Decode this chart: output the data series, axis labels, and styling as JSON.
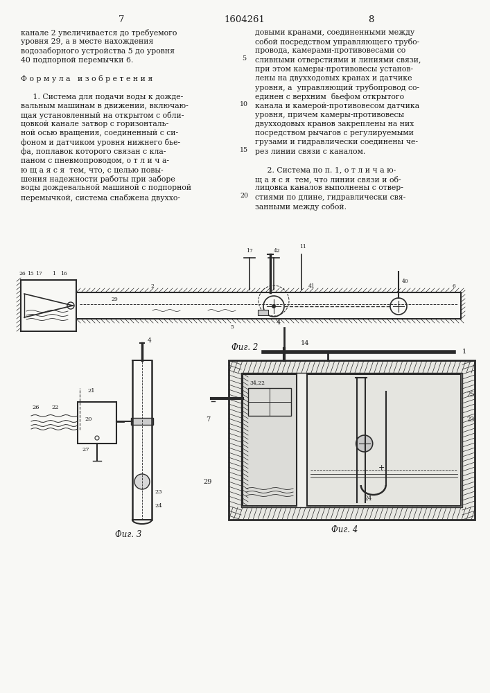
{
  "page_width": 7.07,
  "page_height": 10.0,
  "bg_color": "#f8f8f5",
  "header": {
    "left_num": "7",
    "center_num": "1604261",
    "right_num": "8"
  },
  "left_col_text": [
    "канале 2 увеличивается до требуемого",
    "уровня 29, а в месте нахождения",
    "водозаборного устройства 5 до уровня",
    "40 подпорной перемычки 6.",
    "",
    "Ф о р м у л а   и з о б р е т е н и я",
    "",
    "     1. Система для подачи воды к дожде-",
    "вальным машинам в движении, включаю-",
    "щая установленный на открытом с обли-",
    "цовкой канале затвор с горизонталь-",
    "ной осью вращения, соединенный с си-",
    "фоном и датчиком уровня нижнего бье-",
    "фа, поплавок которого связан с кла-",
    "паном с пневмопроводом, о т л и ч а-",
    "ю щ а я с я  тем, что, с целью повы-",
    "шения надежности работы при заборе",
    "воды дождевальной машиной с подпорной",
    "перемычкой, система снабжена двуххо-"
  ],
  "right_col_text": [
    "довыми кранами, соединенными между",
    "собой посредством управляющего трубо-",
    "провода, камерами-противовесами со",
    "сливными отверстиями и линиями связи,",
    "при этом камеры-противовесы установ-",
    "лены на двухходовых кранах и датчике",
    "уровня, а  управляющий трубопровод со-",
    "единен с верхним  бьефом открытого",
    "канала и камерой-противовесом датчика",
    "уровня, причем камеры-противовесы",
    "двухходовых кранов закреплены на них",
    "посредством рычагов с регулируемыми",
    "грузами и гидравлически соединены че-",
    "рез линии связи с каналом.",
    "",
    "     2. Система по п. 1, о т л и ч а ю-",
    "щ а я с я  тем, что линии связи и об-",
    "лицовка каналов выполнены с отвер-",
    "стиями по длине, гидравлически свя-",
    "занными между собой."
  ],
  "fig2_label": "Фиг. 2",
  "fig3_label": "Фиг. 3",
  "fig4_label": "Фиг. 4",
  "text_color": "#1a1a1a",
  "line_color": "#2a2a2a",
  "font_size_body": 7.8,
  "font_size_header": 9.5
}
